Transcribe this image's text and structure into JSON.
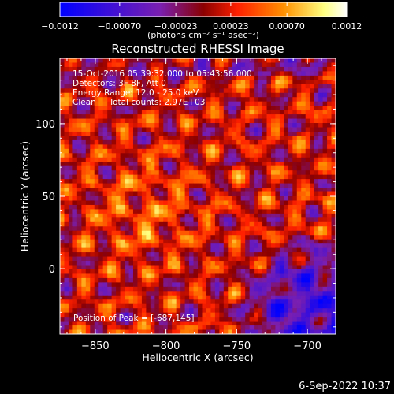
{
  "chart_data": {
    "type": "heatmap",
    "title": "Reconstructed RHESSI Image",
    "xlabel": "Heliocentric X (arcsec)",
    "ylabel": "Heliocentric Y (arcsec)",
    "xlim": [
      -875,
      -680
    ],
    "ylim": [
      -45,
      145
    ],
    "x_ticks": [
      -850,
      -800,
      -750,
      -700
    ],
    "y_ticks": [
      0,
      50,
      100
    ],
    "x_tick_labels": [
      "−850",
      "−800",
      "−750",
      "−700"
    ],
    "y_tick_labels": [
      "0",
      "50",
      "100"
    ],
    "colorbar": {
      "range": [
        -0.0012,
        0.0012
      ],
      "tick_labels": [
        "−0.0012",
        "−0.00070",
        "−0.00023",
        "0.00023",
        "0.00070",
        "0.0012"
      ],
      "ticks": [
        -0.0012,
        -0.0007,
        -0.00023,
        0.00023,
        0.0007,
        0.0012
      ],
      "unit_label": "(photons cm⁻² s⁻¹ asec⁻²)",
      "colors": [
        "#0000ff",
        "#7a1fb0",
        "#8b0000",
        "#ff2000",
        "#ff9000",
        "#ffff80",
        "#ffffff"
      ]
    },
    "annotations": [
      "15-Oct-2016 05:39:32.000 to 05:43:56.000",
      "Detectors: 3F 8F, Att 0",
      "Energy Range: 12.0 - 25.0 keV",
      "Clean     Total counts: 2.97E+03"
    ],
    "peak_label": "Position of Peak = [-687,145]",
    "grid": false
  },
  "footer": {
    "timestamp": "6-Sep-2022 10:37"
  }
}
